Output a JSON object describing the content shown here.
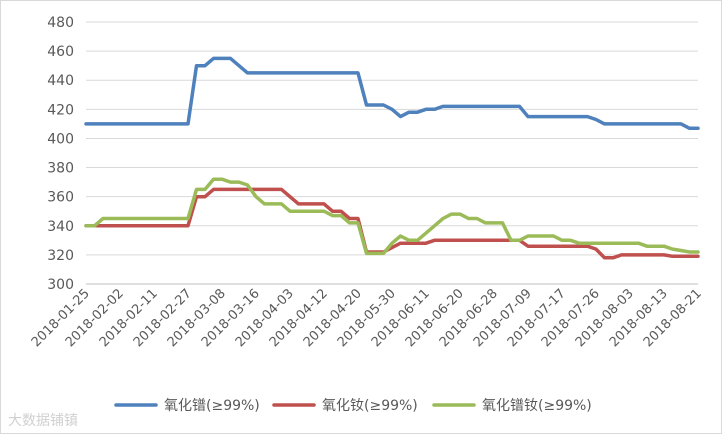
{
  "chart_data": {
    "type": "line",
    "title": "",
    "xlabel": "",
    "ylabel": "",
    "ylim": [
      300,
      480
    ],
    "yticks": [
      300,
      320,
      340,
      360,
      380,
      400,
      420,
      440,
      460,
      480
    ],
    "grid": "horizontal",
    "legend_position": "bottom",
    "x_tick_labels": [
      "2018-01-25",
      "2018-02-02",
      "2018-02-11",
      "2018-02-27",
      "2018-03-08",
      "2018-03-16",
      "2018-04-03",
      "2018-04-12",
      "2018-04-20",
      "2018-05-30",
      "2018-06-11",
      "2018-06-20",
      "2018-06-28",
      "2018-07-09",
      "2018-07-17",
      "2018-07-26",
      "2018-08-03",
      "2018-08-13",
      "2018-08-21"
    ],
    "x": [
      0,
      1,
      2,
      3,
      4,
      5,
      6,
      7,
      8,
      9,
      10,
      11,
      12,
      13,
      14,
      15,
      16,
      17,
      18,
      19,
      20,
      21,
      22,
      23,
      24,
      25,
      26,
      27,
      28,
      29,
      30,
      31,
      32,
      33,
      34,
      35,
      36,
      37,
      38,
      39,
      40,
      41,
      42,
      43,
      44,
      45,
      46,
      47,
      48,
      49,
      50,
      51,
      52,
      53,
      54,
      55,
      56,
      57,
      58,
      59,
      60,
      61,
      62,
      63,
      64,
      65,
      66,
      67,
      68,
      69,
      70,
      71,
      72
    ],
    "series": [
      {
        "name": "氧化镨(≥99%)",
        "color": "#4f81bd",
        "values": [
          410,
          410,
          410,
          410,
          410,
          410,
          410,
          410,
          410,
          410,
          410,
          410,
          410,
          450,
          450,
          455,
          455,
          455,
          450,
          445,
          445,
          445,
          445,
          445,
          445,
          445,
          445,
          445,
          445,
          445,
          445,
          445,
          445,
          423,
          423,
          423,
          420,
          415,
          418,
          418,
          420,
          420,
          422,
          422,
          422,
          422,
          422,
          422,
          422,
          422,
          422,
          422,
          415,
          415,
          415,
          415,
          415,
          415,
          415,
          415,
          413,
          410,
          410,
          410,
          410,
          410,
          410,
          410,
          410,
          410,
          410,
          407,
          407
        ]
      },
      {
        "name": "氧化钕(≥99%)",
        "color": "#c0504d",
        "values": [
          340,
          340,
          340,
          340,
          340,
          340,
          340,
          340,
          340,
          340,
          340,
          340,
          340,
          360,
          360,
          365,
          365,
          365,
          365,
          365,
          365,
          365,
          365,
          365,
          360,
          355,
          355,
          355,
          355,
          350,
          350,
          345,
          345,
          322,
          322,
          322,
          325,
          328,
          328,
          328,
          328,
          330,
          330,
          330,
          330,
          330,
          330,
          330,
          330,
          330,
          330,
          330,
          326,
          326,
          326,
          326,
          326,
          326,
          326,
          326,
          324,
          318,
          318,
          320,
          320,
          320,
          320,
          320,
          320,
          319,
          319,
          319,
          319
        ]
      },
      {
        "name": "氧化镨钕(≥99%)",
        "color": "#9bbb59",
        "values": [
          340,
          340,
          345,
          345,
          345,
          345,
          345,
          345,
          345,
          345,
          345,
          345,
          345,
          365,
          365,
          372,
          372,
          370,
          370,
          368,
          360,
          355,
          355,
          355,
          350,
          350,
          350,
          350,
          350,
          347,
          347,
          342,
          342,
          321,
          321,
          321,
          328,
          333,
          330,
          330,
          335,
          340,
          345,
          348,
          348,
          345,
          345,
          342,
          342,
          342,
          330,
          330,
          333,
          333,
          333,
          333,
          330,
          330,
          328,
          328,
          328,
          328,
          328,
          328,
          328,
          328,
          326,
          326,
          326,
          324,
          323,
          322,
          322
        ]
      }
    ]
  },
  "watermark": "大数据铺镇"
}
